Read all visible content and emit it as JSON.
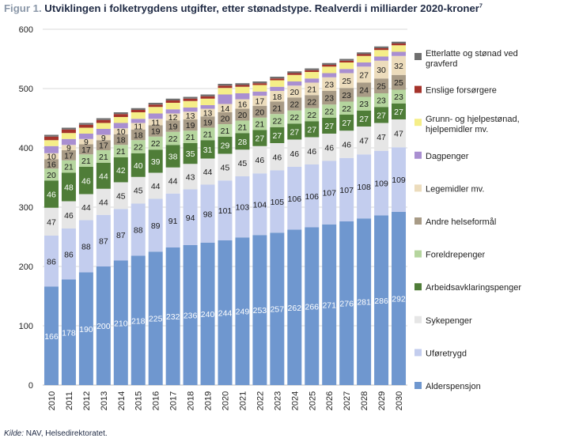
{
  "title": {
    "figure_label": "Figur 1.",
    "text": "Utviklingen i folketrygdens utgifter, etter stønadstype. Realverdi i milliarder 2020-kroner",
    "footnote": "7"
  },
  "source": {
    "label": "Kilde:",
    "text": "NAV, Helsedirektoratet."
  },
  "chart_data": {
    "type": "bar",
    "stacked": true,
    "title": "Utviklingen i folketrygdens utgifter, etter stønadstype. Realverdi i milliarder 2020-kroner",
    "xlabel": "",
    "ylabel": "",
    "ylim": [
      0,
      600
    ],
    "yticks": [
      0,
      100,
      200,
      300,
      400,
      500,
      600
    ],
    "grid": true,
    "legend_position": "right",
    "categories": [
      "2010",
      "2011",
      "2012",
      "2013",
      "2014",
      "2015",
      "2016",
      "2017",
      "2018",
      "2019",
      "2020",
      "2021",
      "2022",
      "2023",
      "2024",
      "2025",
      "2026",
      "2027",
      "2028",
      "2029",
      "2030"
    ],
    "series": [
      {
        "name": "Alderspensjon",
        "color": "#6f97cf",
        "label_color": "#ffffff",
        "values": [
          166,
          178,
          190,
          200,
          210,
          218,
          225,
          232,
          236,
          240,
          244,
          249,
          253,
          257,
          262,
          266,
          271,
          276,
          281,
          286,
          292
        ]
      },
      {
        "name": "Uføretrygd",
        "color": "#c3cdee",
        "label_color": "#1a1a1a",
        "values": [
          86,
          86,
          88,
          87,
          87,
          88,
          89,
          91,
          94,
          98,
          101,
          103,
          104,
          105,
          106,
          106,
          107,
          107,
          108,
          109,
          109
        ]
      },
      {
        "name": "Sykepenger",
        "color": "#e6e6e6",
        "label_color": "#1a1a1a",
        "values": [
          47,
          46,
          44,
          44,
          45,
          45,
          44,
          44,
          43,
          44,
          45,
          45,
          46,
          46,
          46,
          46,
          46,
          46,
          47,
          47,
          47
        ]
      },
      {
        "name": "Arbeidsavklaringspenger",
        "color": "#4f7d38",
        "label_color": "#ffffff",
        "values": [
          46,
          48,
          46,
          44,
          42,
          40,
          39,
          38,
          35,
          31,
          29,
          28,
          27,
          27,
          27,
          27,
          27,
          27,
          27,
          27,
          27
        ]
      },
      {
        "name": "Foreldrepenger",
        "color": "#b5d59e",
        "label_color": "#1a1a1a",
        "values": [
          20,
          21,
          21,
          21,
          21,
          22,
          22,
          22,
          21,
          21,
          21,
          21,
          21,
          22,
          22,
          22,
          22,
          22,
          23,
          23,
          23
        ]
      },
      {
        "name": "Andre helseformål",
        "color": "#a89b86",
        "label_color": "#1a1a1a",
        "values": [
          16,
          17,
          17,
          17,
          18,
          18,
          19,
          19,
          19,
          19,
          20,
          20,
          20,
          21,
          22,
          22,
          23,
          23,
          24,
          25,
          25
        ]
      },
      {
        "name": "Legemidler mv.",
        "color": "#ecdcbc",
        "label_color": "#1a1a1a",
        "values": [
          10,
          9,
          9,
          9,
          10,
          11,
          11,
          12,
          13,
          13,
          14,
          16,
          17,
          18,
          20,
          21,
          23,
          25,
          27,
          30,
          32
        ]
      },
      {
        "name": "Dagpenger",
        "color": "#a98fd1",
        "label_color": "#1a1a1a",
        "values": [
          12,
          10,
          9,
          10,
          9,
          7,
          9,
          7,
          7,
          6,
          16,
          10,
          7,
          7,
          7,
          7,
          7,
          7,
          7,
          7,
          7
        ]
      },
      {
        "name": "Grunn- og hjelpestønad, hjelpemidler mv.",
        "color": "#f5ee88",
        "label_color": "#1a1a1a",
        "values": [
          10,
          10,
          10,
          10,
          10,
          11,
          11,
          11,
          11,
          11,
          11,
          11,
          11,
          11,
          11,
          11,
          11,
          11,
          11,
          11,
          11
        ]
      },
      {
        "name": "Enslige forsørgere",
        "color": "#a5332b",
        "label_color": "#ffffff",
        "values": [
          6,
          6,
          5,
          5,
          5,
          4,
          4,
          4,
          4,
          4,
          4,
          3,
          3,
          3,
          3,
          3,
          3,
          3,
          3,
          3,
          3
        ]
      },
      {
        "name": "Etterlatte og stønad ved gravferd",
        "color": "#6f6f6f",
        "label_color": "#ffffff",
        "values": [
          3,
          3,
          3,
          3,
          3,
          3,
          3,
          3,
          3,
          3,
          3,
          3,
          3,
          3,
          3,
          3,
          3,
          3,
          3,
          3,
          3
        ]
      }
    ],
    "data_labels": {
      "Alderspensjon": true,
      "Uføretrygd": true,
      "Sykepenger": true,
      "Arbeidsavklaringspenger": true,
      "Foreldrepenger": true,
      "Andre helseformål": true,
      "Legemidler mv.": true
    },
    "legend_order": [
      "Etterlatte og stønad ved gravferd",
      "Enslige forsørgere",
      "Grunn- og hjelpestønad, hjelpemidler mv.",
      "Dagpenger",
      "Legemidler mv.",
      "Andre helseformål",
      "Foreldrepenger",
      "Arbeidsavklaringspenger",
      "Sykepenger",
      "Uføretrygd",
      "Alderspensjon"
    ]
  }
}
